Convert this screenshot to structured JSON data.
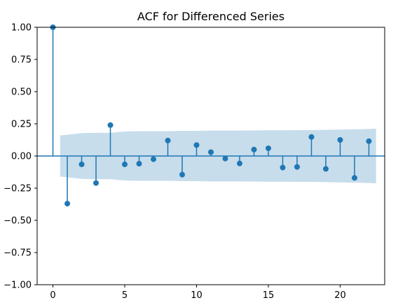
{
  "chart_data": {
    "type": "stem",
    "title": "ACF for Differenced Series",
    "xlabel": "",
    "ylabel": "",
    "xlim": [
      -1.1,
      23.1
    ],
    "ylim": [
      -1.0,
      1.0
    ],
    "x_ticks": [
      0,
      5,
      10,
      15,
      20
    ],
    "y_ticks": [
      -1.0,
      -0.75,
      -0.5,
      -0.25,
      0.0,
      0.25,
      0.5,
      0.75,
      1.0
    ],
    "x_tick_labels": [
      "0",
      "5",
      "10",
      "15",
      "20"
    ],
    "y_tick_labels": [
      "−1.00",
      "−0.75",
      "−0.50",
      "−0.25",
      "0.00",
      "0.25",
      "0.50",
      "0.75",
      "1.00"
    ],
    "lags": [
      0,
      1,
      2,
      3,
      4,
      5,
      6,
      7,
      8,
      9,
      10,
      11,
      12,
      13,
      14,
      15,
      16,
      17,
      18,
      19,
      20,
      21,
      22
    ],
    "acf": [
      1.0,
      -0.37,
      -0.065,
      -0.21,
      0.24,
      -0.065,
      -0.06,
      -0.025,
      0.12,
      -0.145,
      0.085,
      0.03,
      -0.02,
      -0.058,
      0.05,
      0.06,
      -0.09,
      -0.085,
      0.148,
      -0.1,
      0.125,
      -0.17,
      0.115
    ],
    "confidence_band": {
      "lags": [
        0.5,
        1,
        2,
        3,
        4,
        5,
        6,
        7,
        8,
        9,
        10,
        11,
        12,
        13,
        14,
        15,
        16,
        17,
        18,
        19,
        20,
        21,
        22,
        22.5
      ],
      "upper": [
        0.16,
        0.165,
        0.178,
        0.18,
        0.18,
        0.19,
        0.193,
        0.193,
        0.193,
        0.196,
        0.196,
        0.198,
        0.198,
        0.198,
        0.199,
        0.2,
        0.2,
        0.201,
        0.201,
        0.203,
        0.205,
        0.207,
        0.21,
        0.212
      ]
    },
    "grid": false,
    "colors": {
      "stem": "#1f77b4",
      "marker": "#1f77b4",
      "band": "#1f77b4",
      "zero_line": "#1f77b4",
      "axes": "#000000"
    }
  }
}
